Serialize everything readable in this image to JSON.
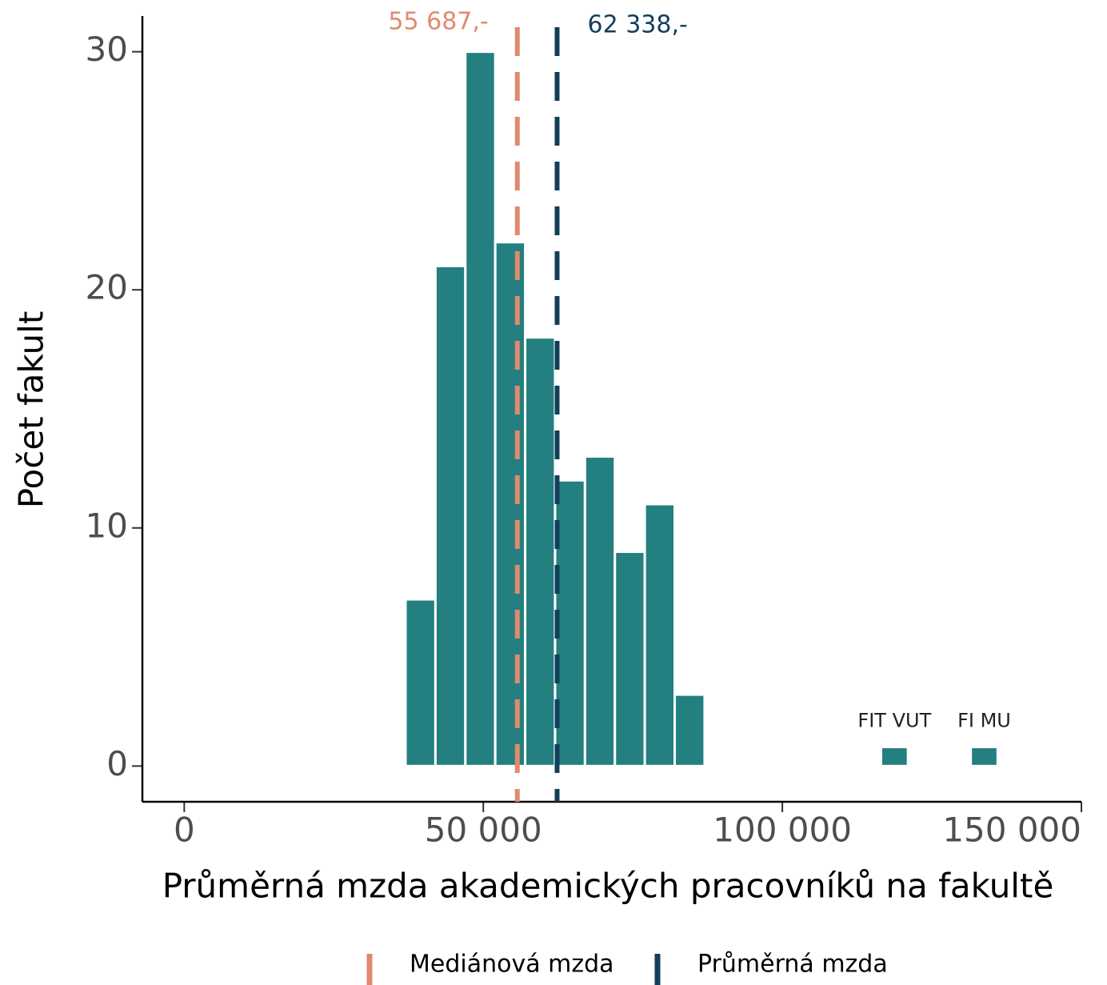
{
  "chart_data": {
    "type": "histogram",
    "x_label": "Průměrná mzda akademických pracovníků na fakultě",
    "y_label": "Počet fakult",
    "bins": [
      37000,
      42000,
      47000,
      52000,
      57000,
      62000,
      67000,
      72000,
      77000,
      82000,
      87000
    ],
    "values": [
      7,
      21,
      30,
      22,
      18,
      12,
      13,
      9,
      11,
      3
    ],
    "color": "#237f80",
    "highlights": [
      {
        "label": "FIT VUT",
        "bins": [
          116500,
          121000
        ],
        "value": 0.8
      },
      {
        "label": "FI MU",
        "bins": [
          131500,
          136000
        ],
        "value": 0.8
      }
    ],
    "lines": [
      {
        "name": "Mediánová mzda",
        "value": 55687,
        "label": "55 687,-",
        "color": "#e08a6e"
      },
      {
        "name": "Průměrná mzda",
        "value": 62338,
        "label": "62 338,-",
        "color": "#123f5a"
      }
    ],
    "xlim": [
      -7000,
      150000
    ],
    "xticks": [
      0,
      {
        "value": 50000,
        "label": "50 000"
      },
      {
        "value": 100000,
        "label": "100 000"
      },
      {
        "value": 150000,
        "label": "150 000"
      }
    ],
    "ylim": [
      -1.5,
      31.5
    ],
    "yticks": [
      0,
      10,
      20,
      30
    ]
  }
}
